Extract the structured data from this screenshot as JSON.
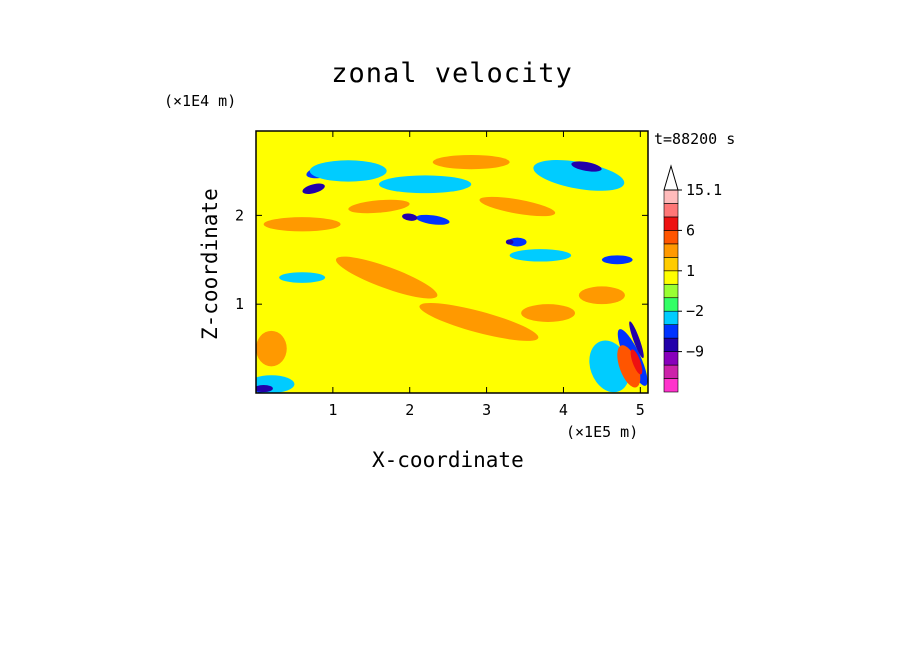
{
  "chart_data": {
    "type": "heatmap",
    "title": "zonal velocity",
    "xlabel": "X-coordinate",
    "ylabel": "Z-coordinate",
    "x_unit": "(×1E5 m)",
    "y_unit": "(×1E4 m)",
    "annotation": "t=88200 s",
    "xlim": [
      0,
      5.1
    ],
    "ylim": [
      0,
      2.95
    ],
    "x_ticks": [
      1,
      2,
      3,
      4,
      5
    ],
    "x_tick_labels": [
      "1",
      "2",
      "3",
      "4",
      "5"
    ],
    "y_ticks": [
      1,
      2
    ],
    "y_tick_labels": [
      "1",
      "2"
    ],
    "colorbar": {
      "levels": [
        -15,
        -12,
        -9,
        -6,
        -4,
        -2,
        -1,
        0,
        1,
        2,
        4,
        6,
        9,
        12,
        15.1
      ],
      "labels": [
        {
          "value": 15.1,
          "text": "15.1"
        },
        {
          "value": 6,
          "text": "6"
        },
        {
          "value": 1,
          "text": "1"
        },
        {
          "value": -2,
          "text": "−2"
        },
        {
          "value": -9,
          "text": "−9"
        }
      ],
      "colors": [
        "#ff33cc",
        "#cc22aa",
        "#8800bb",
        "#2200aa",
        "#0033ff",
        "#00ccff",
        "#33ff66",
        "#99ff33",
        "#ffff00",
        "#ffcc00",
        "#ff9900",
        "#ff5500",
        "#ee1111",
        "#ff7777",
        "#ffbbbb"
      ],
      "extend_max": true
    },
    "contours": [
      {
        "x": 0.9,
        "z": 2.5,
        "rx": 0.25,
        "rz": 0.07,
        "angle": -12,
        "level": 4
      },
      {
        "x": 2.3,
        "z": 1.95,
        "rx": 0.22,
        "rz": 0.05,
        "angle": 8,
        "level": 4
      },
      {
        "x": 3.4,
        "z": 1.7,
        "rx": 0.12,
        "rz": 0.05,
        "angle": 0,
        "level": 4
      },
      {
        "x": 4.2,
        "z": 2.5,
        "rx": 0.4,
        "rz": 0.08,
        "angle": 10,
        "level": 4
      },
      {
        "x": 4.9,
        "z": 0.4,
        "rx": 0.1,
        "rz": 0.35,
        "angle": -25,
        "level": 4
      },
      {
        "x": 0.15,
        "z": 0.05,
        "rx": 0.18,
        "rz": 0.06,
        "angle": 0,
        "level": 4
      },
      {
        "x": 4.7,
        "z": 1.5,
        "rx": 0.2,
        "rz": 0.05,
        "angle": 0,
        "level": 4
      },
      {
        "x": 1.2,
        "z": 2.5,
        "rx": 0.5,
        "rz": 0.12,
        "angle": 0,
        "level": 5
      },
      {
        "x": 4.2,
        "z": 2.45,
        "rx": 0.6,
        "rz": 0.15,
        "angle": 10,
        "level": 5
      },
      {
        "x": 3.7,
        "z": 1.55,
        "rx": 0.4,
        "rz": 0.07,
        "angle": 0,
        "level": 5
      },
      {
        "x": 0.2,
        "z": 0.1,
        "rx": 0.3,
        "rz": 0.1,
        "angle": 0,
        "level": 5
      },
      {
        "x": 4.6,
        "z": 0.3,
        "rx": 0.25,
        "rz": 0.3,
        "angle": -20,
        "level": 5
      },
      {
        "x": 2.2,
        "z": 2.35,
        "rx": 0.6,
        "rz": 0.1,
        "angle": 0,
        "level": 5
      },
      {
        "x": 0.6,
        "z": 1.3,
        "rx": 0.3,
        "rz": 0.06,
        "angle": 0,
        "level": 5
      },
      {
        "x": 2.8,
        "z": 2.6,
        "rx": 0.5,
        "rz": 0.08,
        "angle": 0,
        "level": 10
      },
      {
        "x": 1.6,
        "z": 2.1,
        "rx": 0.4,
        "rz": 0.07,
        "angle": -5,
        "level": 10
      },
      {
        "x": 3.4,
        "z": 2.1,
        "rx": 0.5,
        "rz": 0.08,
        "angle": 10,
        "level": 10
      },
      {
        "x": 2.9,
        "z": 0.8,
        "rx": 0.8,
        "rz": 0.12,
        "angle": 15,
        "level": 10
      },
      {
        "x": 1.7,
        "z": 1.3,
        "rx": 0.7,
        "rz": 0.12,
        "angle": 20,
        "level": 10
      },
      {
        "x": 0.6,
        "z": 1.9,
        "rx": 0.5,
        "rz": 0.08,
        "angle": 0,
        "level": 10
      },
      {
        "x": 3.8,
        "z": 0.9,
        "rx": 0.35,
        "rz": 0.1,
        "angle": 0,
        "level": 10
      },
      {
        "x": 0.2,
        "z": 0.5,
        "rx": 0.2,
        "rz": 0.2,
        "angle": 0,
        "level": 10
      },
      {
        "x": 4.5,
        "z": 1.1,
        "rx": 0.3,
        "rz": 0.1,
        "angle": 0,
        "level": 10
      },
      {
        "x": 4.85,
        "z": 0.3,
        "rx": 0.12,
        "rz": 0.25,
        "angle": -20,
        "level": 11
      },
      {
        "x": 4.95,
        "z": 0.35,
        "rx": 0.05,
        "rz": 0.15,
        "angle": -20,
        "level": 12
      },
      {
        "x": 0.75,
        "z": 2.3,
        "rx": 0.15,
        "rz": 0.05,
        "angle": -15,
        "level": 3
      },
      {
        "x": 2.0,
        "z": 1.98,
        "rx": 0.1,
        "rz": 0.04,
        "angle": 8,
        "level": 3
      },
      {
        "x": 3.3,
        "z": 1.7,
        "rx": 0.05,
        "rz": 0.03,
        "angle": 0,
        "level": 3
      },
      {
        "x": 4.3,
        "z": 2.55,
        "rx": 0.2,
        "rz": 0.05,
        "angle": 10,
        "level": 3
      },
      {
        "x": 0.1,
        "z": 0.05,
        "rx": 0.12,
        "rz": 0.04,
        "angle": 0,
        "level": 3
      },
      {
        "x": 4.95,
        "z": 0.6,
        "rx": 0.04,
        "rz": 0.22,
        "angle": -20,
        "level": 3
      }
    ]
  }
}
